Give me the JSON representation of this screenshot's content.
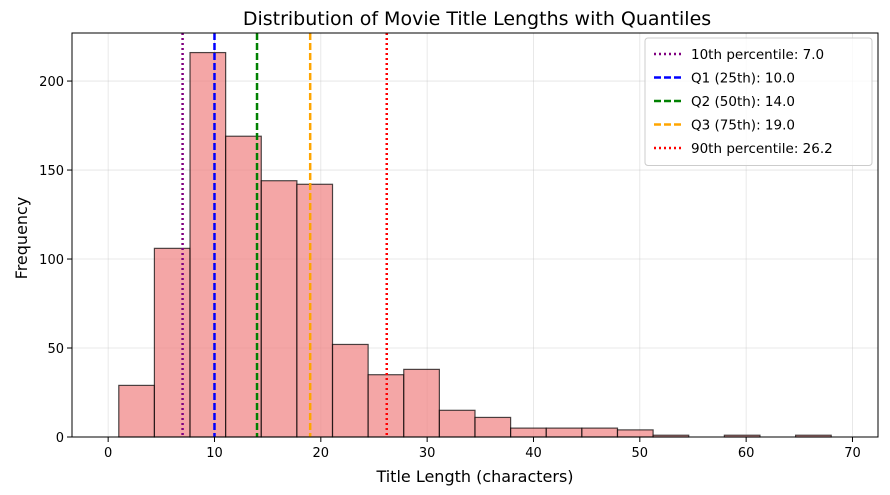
{
  "chart_data": {
    "type": "histogram",
    "title": "Distribution of Movie Title Lengths with Quantiles",
    "xlabel": "Title Length (characters)",
    "ylabel": "Frequency",
    "xlim": [
      -3.4,
      72.4
    ],
    "ylim": [
      0,
      227
    ],
    "xticks": [
      0,
      10,
      20,
      30,
      40,
      50,
      60,
      70
    ],
    "yticks": [
      0,
      50,
      100,
      150,
      200
    ],
    "grid": true,
    "legend_position": "top-right",
    "bar_color": "#f08080",
    "bins": [
      {
        "x0": 1.0,
        "x1": 4.35,
        "count": 29
      },
      {
        "x0": 4.35,
        "x1": 7.7,
        "count": 106
      },
      {
        "x0": 7.7,
        "x1": 11.05,
        "count": 216
      },
      {
        "x0": 11.05,
        "x1": 14.4,
        "count": 169
      },
      {
        "x0": 14.4,
        "x1": 17.75,
        "count": 144
      },
      {
        "x0": 17.75,
        "x1": 21.1,
        "count": 142
      },
      {
        "x0": 21.1,
        "x1": 24.45,
        "count": 52
      },
      {
        "x0": 24.45,
        "x1": 27.8,
        "count": 35
      },
      {
        "x0": 27.8,
        "x1": 31.15,
        "count": 38
      },
      {
        "x0": 31.15,
        "x1": 34.5,
        "count": 15
      },
      {
        "x0": 34.5,
        "x1": 37.85,
        "count": 11
      },
      {
        "x0": 37.85,
        "x1": 41.2,
        "count": 5
      },
      {
        "x0": 41.2,
        "x1": 44.55,
        "count": 5
      },
      {
        "x0": 44.55,
        "x1": 47.9,
        "count": 5
      },
      {
        "x0": 47.9,
        "x1": 51.25,
        "count": 4
      },
      {
        "x0": 51.25,
        "x1": 54.6,
        "count": 1
      },
      {
        "x0": 54.6,
        "x1": 57.95,
        "count": 0
      },
      {
        "x0": 57.95,
        "x1": 61.3,
        "count": 1
      },
      {
        "x0": 61.3,
        "x1": 64.65,
        "count": 0
      },
      {
        "x0": 64.65,
        "x1": 68.0,
        "count": 1
      }
    ],
    "quantile_lines": [
      {
        "label": "10th percentile: 7.0",
        "value": 7.0,
        "color": "#800080",
        "style": "dotted"
      },
      {
        "label": "Q1 (25th): 10.0",
        "value": 10.0,
        "color": "#0000ff",
        "style": "dashed"
      },
      {
        "label": "Q2 (50th): 14.0",
        "value": 14.0,
        "color": "#008000",
        "style": "dashed"
      },
      {
        "label": "Q3 (75th): 19.0",
        "value": 19.0,
        "color": "#ffa500",
        "style": "dashed"
      },
      {
        "label": "90th percentile: 26.2",
        "value": 26.2,
        "color": "#ff0000",
        "style": "dotted"
      }
    ]
  }
}
